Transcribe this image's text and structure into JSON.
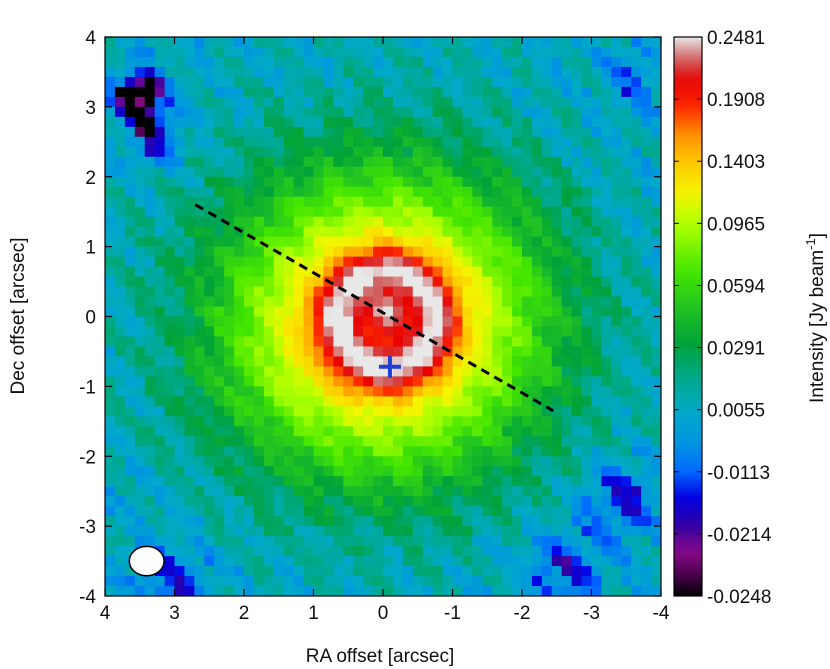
{
  "chart_data": {
    "type": "heatmap",
    "title": "",
    "xlabel": "RA offset [arcsec]",
    "ylabel": "Dec offset [arcsec]",
    "xlim": [
      4,
      -4
    ],
    "ylim": [
      -4,
      4
    ],
    "x_ticks": [
      4,
      3,
      2,
      1,
      0,
      -1,
      -2,
      -3,
      -4
    ],
    "x_tick_labels": [
      "4",
      "3",
      "2",
      "1",
      "0",
      "-1",
      "-2",
      "-3",
      "-4"
    ],
    "y_ticks": [
      4,
      3,
      2,
      1,
      0,
      -1,
      -2,
      -3,
      -4
    ],
    "y_tick_labels": [
      "4",
      "3",
      "2",
      "1",
      "0",
      "-1",
      "-2",
      "-3",
      "-4"
    ],
    "colorbar": {
      "label": "Intensity [Jy beam",
      "label_superscript": "-1",
      "label_close": "]",
      "min": -0.0248,
      "max": 0.2481,
      "ticks": [
        0.2481,
        0.1908,
        0.1403,
        0.0965,
        0.0594,
        0.0291,
        0.0055,
        -0.0113,
        -0.0214,
        -0.0248
      ],
      "tick_labels": [
        "0.2481",
        "0.1908",
        "0.1403",
        "0.0965",
        "0.0594",
        "0.0291",
        "0.0055",
        "-0.0113",
        "-0.0214",
        "-0.0248"
      ]
    },
    "emission_model": {
      "background_level": 0.006,
      "envelope": {
        "center": [
          0.0,
          -0.1
        ],
        "sigma_ra": 1.45,
        "sigma_dec": 1.35,
        "peak": 0.17
      },
      "ring": {
        "center": [
          -0.05,
          -0.05
        ],
        "radius": 0.72,
        "width": 0.22,
        "peak": 0.1
      },
      "core": {
        "center": [
          -0.05,
          0.05
        ],
        "sigma": 0.18,
        "peak": 0.07
      },
      "absorption_patches": [
        {
          "center": [
            3.5,
            3.2
          ],
          "sigma": 0.25,
          "depth": -0.04
        },
        {
          "center": [
            3.3,
            2.6
          ],
          "sigma": 0.3,
          "depth": -0.025
        },
        {
          "center": [
            -3.4,
            -2.6
          ],
          "sigma": 0.35,
          "depth": -0.025
        },
        {
          "center": [
            -2.6,
            -3.6
          ],
          "sigma": 0.4,
          "depth": -0.02
        },
        {
          "center": [
            3.0,
            -3.8
          ],
          "sigma": 0.4,
          "depth": -0.02
        },
        {
          "center": [
            -3.6,
            3.4
          ],
          "sigma": 0.3,
          "depth": -0.015
        }
      ]
    },
    "markers": [
      {
        "name": "source-cross",
        "ra": -0.1,
        "dec": -0.72,
        "symbol": "+",
        "color": "#1f3fd6"
      }
    ],
    "cut_line": {
      "from": [
        2.7,
        1.6
      ],
      "to": [
        -2.45,
        -1.35
      ],
      "style": "dashed",
      "color": "#000000"
    },
    "beam": {
      "center": [
        3.4,
        -3.5
      ],
      "major": 0.5,
      "minor": 0.42,
      "angle_deg": 0,
      "fill": "#ffffff"
    },
    "colormap": [
      [
        0.0,
        "#000000"
      ],
      [
        0.03,
        "#3b0040"
      ],
      [
        0.08,
        "#8a0a8a"
      ],
      [
        0.13,
        "#2a00a8"
      ],
      [
        0.18,
        "#0000e6"
      ],
      [
        0.22,
        "#0068ff"
      ],
      [
        0.28,
        "#0099dd"
      ],
      [
        0.33,
        "#00a9c8"
      ],
      [
        0.39,
        "#00a98a"
      ],
      [
        0.45,
        "#00a23a"
      ],
      [
        0.52,
        "#23c520"
      ],
      [
        0.58,
        "#44e600"
      ],
      [
        0.66,
        "#a8ff00"
      ],
      [
        0.72,
        "#f5f500"
      ],
      [
        0.78,
        "#ffc400"
      ],
      [
        0.83,
        "#ff8a00"
      ],
      [
        0.87,
        "#ff3000"
      ],
      [
        0.92,
        "#e80000"
      ],
      [
        0.96,
        "#d06060"
      ],
      [
        1.0,
        "#e8e8e8"
      ]
    ],
    "grid": false
  }
}
